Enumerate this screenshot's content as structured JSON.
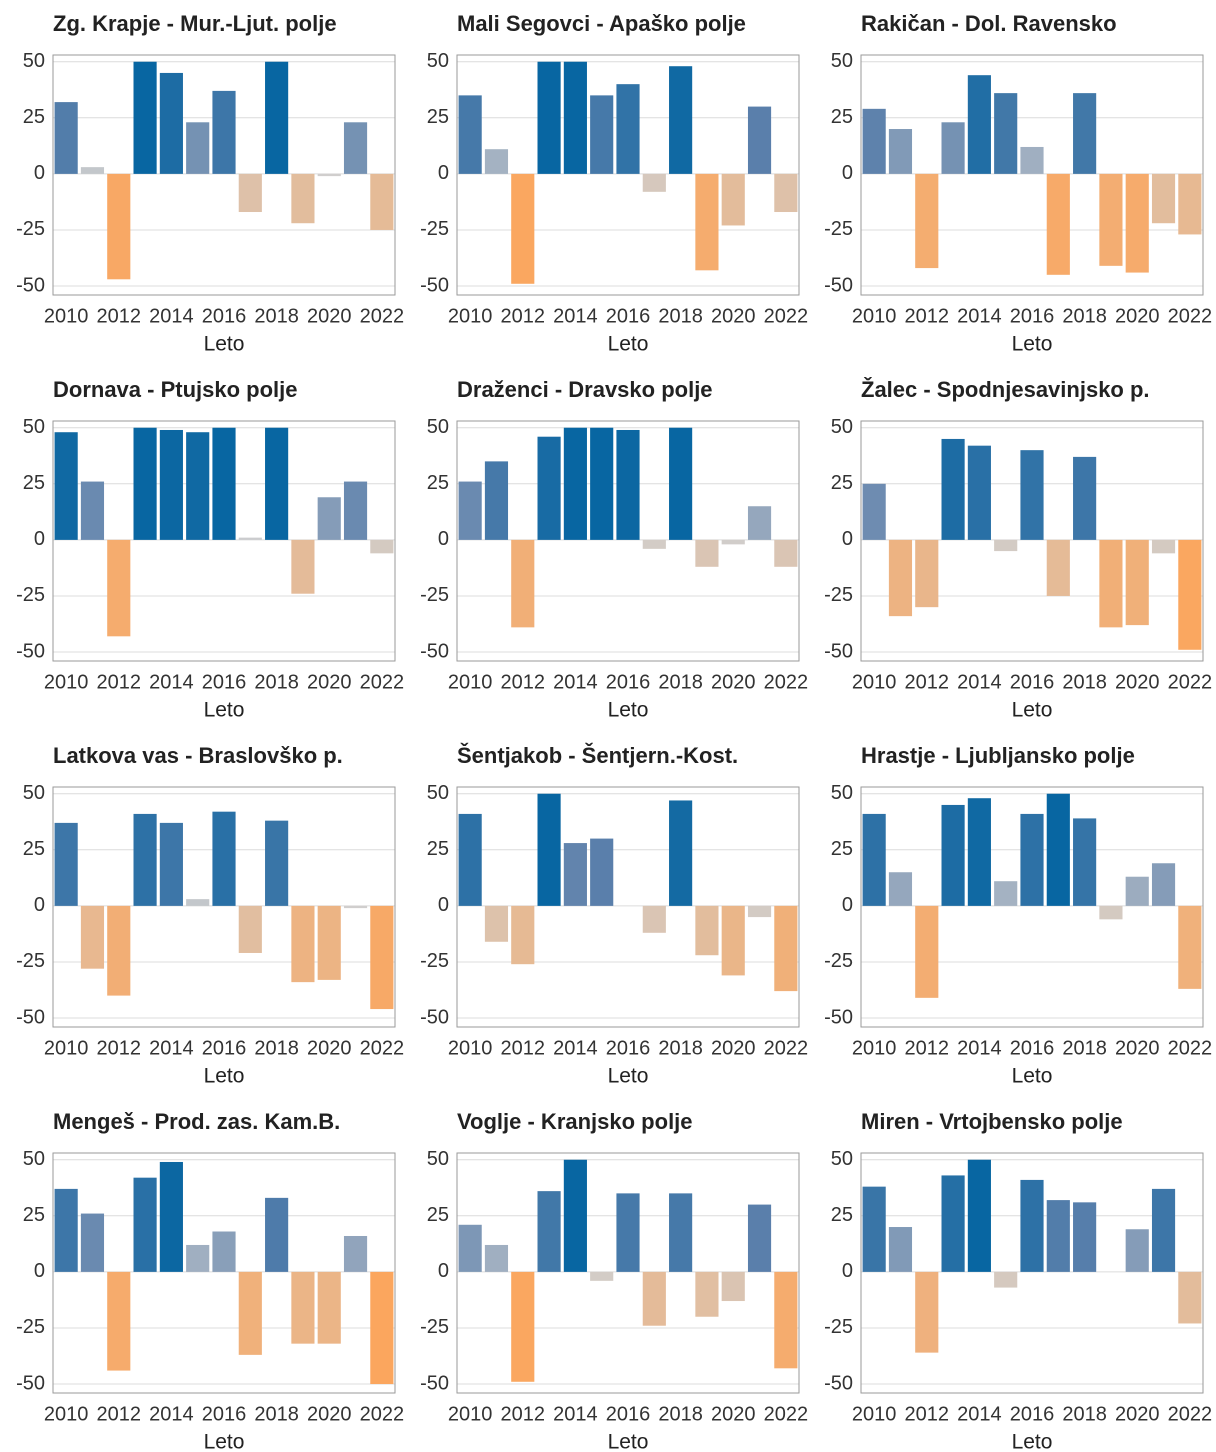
{
  "color_scale": [
    {
      "value": -50,
      "color": "#fba65e"
    },
    {
      "value": 0,
      "color": "#cfcfcf"
    },
    {
      "value": 30,
      "color": "#5a7fab"
    },
    {
      "value": 50,
      "color": "#0866a2"
    }
  ],
  "chart_data": [
    {
      "type": "bar",
      "title": "Zg. Krapje - Mur.-Ljut. polje",
      "x_label": "Leto",
      "x": [
        2010,
        2011,
        2012,
        2013,
        2014,
        2015,
        2016,
        2017,
        2018,
        2019,
        2020,
        2021,
        2022
      ],
      "values": [
        32,
        3,
        -47,
        50,
        45,
        23,
        37,
        -17,
        50,
        -22,
        -1,
        23,
        -25
      ],
      "xlim": [
        2009.5,
        2022.5
      ],
      "xticks": [
        2010,
        2012,
        2014,
        2016,
        2018,
        2020,
        2022
      ],
      "ylim": [
        -54,
        53
      ],
      "yticks": [
        -50,
        -25,
        0,
        25,
        50
      ],
      "grid": true
    },
    {
      "type": "bar",
      "title": "Mali Segovci - Apaško polje",
      "x_label": "Leto",
      "x": [
        2010,
        2011,
        2012,
        2013,
        2014,
        2015,
        2016,
        2017,
        2018,
        2019,
        2020,
        2021,
        2022
      ],
      "values": [
        35,
        11,
        -49,
        50,
        50,
        35,
        40,
        -8,
        48,
        -43,
        -23,
        30,
        -17
      ],
      "xlim": [
        2009.5,
        2022.5
      ],
      "xticks": [
        2010,
        2012,
        2014,
        2016,
        2018,
        2020,
        2022
      ],
      "ylim": [
        -54,
        53
      ],
      "yticks": [
        -50,
        -25,
        0,
        25,
        50
      ],
      "grid": true
    },
    {
      "type": "bar",
      "title": "Rakičan - Dol. Ravensko",
      "x_label": "Leto",
      "x": [
        2010,
        2011,
        2012,
        2013,
        2014,
        2015,
        2016,
        2017,
        2018,
        2019,
        2020,
        2021,
        2022
      ],
      "values": [
        29,
        20,
        -42,
        23,
        44,
        36,
        12,
        -45,
        36,
        -41,
        -44,
        -22,
        -27
      ],
      "xlim": [
        2009.5,
        2022.5
      ],
      "xticks": [
        2010,
        2012,
        2014,
        2016,
        2018,
        2020,
        2022
      ],
      "ylim": [
        -54,
        53
      ],
      "yticks": [
        -50,
        -25,
        0,
        25,
        50
      ],
      "grid": true
    },
    {
      "type": "bar",
      "title": "Dornava - Ptujsko polje",
      "x_label": "Leto",
      "x": [
        2010,
        2011,
        2012,
        2013,
        2014,
        2015,
        2016,
        2017,
        2018,
        2019,
        2020,
        2021,
        2022
      ],
      "values": [
        48,
        26,
        -43,
        50,
        49,
        48,
        50,
        1,
        50,
        -24,
        19,
        26,
        -6
      ],
      "xlim": [
        2009.5,
        2022.5
      ],
      "xticks": [
        2010,
        2012,
        2014,
        2016,
        2018,
        2020,
        2022
      ],
      "ylim": [
        -54,
        53
      ],
      "yticks": [
        -50,
        -25,
        0,
        25,
        50
      ],
      "grid": true
    },
    {
      "type": "bar",
      "title": "Draženci - Dravsko polje",
      "x_label": "Leto",
      "x": [
        2010,
        2011,
        2012,
        2013,
        2014,
        2015,
        2016,
        2017,
        2018,
        2019,
        2020,
        2021,
        2022
      ],
      "values": [
        26,
        35,
        -39,
        46,
        50,
        50,
        49,
        -4,
        50,
        -12,
        -2,
        15,
        -12
      ],
      "xlim": [
        2009.5,
        2022.5
      ],
      "xticks": [
        2010,
        2012,
        2014,
        2016,
        2018,
        2020,
        2022
      ],
      "ylim": [
        -54,
        53
      ],
      "yticks": [
        -50,
        -25,
        0,
        25,
        50
      ],
      "grid": true
    },
    {
      "type": "bar",
      "title": "Žalec - Spodnjesavinjsko p.",
      "x_label": "Leto",
      "x": [
        2010,
        2011,
        2012,
        2013,
        2014,
        2015,
        2016,
        2017,
        2018,
        2019,
        2020,
        2021,
        2022
      ],
      "values": [
        25,
        -34,
        -30,
        45,
        42,
        -5,
        40,
        -25,
        37,
        -39,
        -38,
        -6,
        -49
      ],
      "xlim": [
        2009.5,
        2022.5
      ],
      "xticks": [
        2010,
        2012,
        2014,
        2016,
        2018,
        2020,
        2022
      ],
      "ylim": [
        -54,
        53
      ],
      "yticks": [
        -50,
        -25,
        0,
        25,
        50
      ],
      "grid": true
    },
    {
      "type": "bar",
      "title": "Latkova vas - Braslovško p.",
      "x_label": "Leto",
      "x": [
        2010,
        2011,
        2012,
        2013,
        2014,
        2015,
        2016,
        2017,
        2018,
        2019,
        2020,
        2021,
        2022
      ],
      "values": [
        37,
        -28,
        -40,
        41,
        37,
        3,
        42,
        -21,
        38,
        -34,
        -33,
        -1,
        -46
      ],
      "xlim": [
        2009.5,
        2022.5
      ],
      "xticks": [
        2010,
        2012,
        2014,
        2016,
        2018,
        2020,
        2022
      ],
      "ylim": [
        -54,
        53
      ],
      "yticks": [
        -50,
        -25,
        0,
        25,
        50
      ],
      "grid": true
    },
    {
      "type": "bar",
      "title": "Šentjakob - Šentjern.-Kost.",
      "x_label": "Leto",
      "x": [
        2010,
        2011,
        2012,
        2013,
        2014,
        2015,
        2016,
        2017,
        2018,
        2019,
        2020,
        2021,
        2022
      ],
      "values": [
        41,
        -16,
        -26,
        50,
        28,
        30,
        0,
        -12,
        47,
        -22,
        -31,
        -5,
        -38
      ],
      "xlim": [
        2009.5,
        2022.5
      ],
      "xticks": [
        2010,
        2012,
        2014,
        2016,
        2018,
        2020,
        2022
      ],
      "ylim": [
        -54,
        53
      ],
      "yticks": [
        -50,
        -25,
        0,
        25,
        50
      ],
      "grid": true
    },
    {
      "type": "bar",
      "title": "Hrastje - Ljubljansko polje",
      "x_label": "Leto",
      "x": [
        2010,
        2011,
        2012,
        2013,
        2014,
        2015,
        2016,
        2017,
        2018,
        2019,
        2020,
        2021,
        2022
      ],
      "values": [
        41,
        15,
        -41,
        45,
        48,
        11,
        41,
        50,
        39,
        -6,
        13,
        19,
        -37
      ],
      "xlim": [
        2009.5,
        2022.5
      ],
      "xticks": [
        2010,
        2012,
        2014,
        2016,
        2018,
        2020,
        2022
      ],
      "ylim": [
        -54,
        53
      ],
      "yticks": [
        -50,
        -25,
        0,
        25,
        50
      ],
      "grid": true
    },
    {
      "type": "bar",
      "title": "Mengeš - Prod. zas. Kam.B.",
      "x_label": "Leto",
      "x": [
        2010,
        2011,
        2012,
        2013,
        2014,
        2015,
        2016,
        2017,
        2018,
        2019,
        2020,
        2021,
        2022
      ],
      "values": [
        37,
        26,
        -44,
        42,
        49,
        12,
        18,
        -37,
        33,
        -32,
        -32,
        16,
        -50
      ],
      "xlim": [
        2009.5,
        2022.5
      ],
      "xticks": [
        2010,
        2012,
        2014,
        2016,
        2018,
        2020,
        2022
      ],
      "ylim": [
        -54,
        53
      ],
      "yticks": [
        -50,
        -25,
        0,
        25,
        50
      ],
      "grid": true
    },
    {
      "type": "bar",
      "title": "Voglje - Kranjsko polje",
      "x_label": "Leto",
      "x": [
        2010,
        2011,
        2012,
        2013,
        2014,
        2015,
        2016,
        2017,
        2018,
        2019,
        2020,
        2021,
        2022
      ],
      "values": [
        21,
        12,
        -49,
        36,
        50,
        -4,
        35,
        -24,
        35,
        -20,
        -13,
        30,
        -43
      ],
      "xlim": [
        2009.5,
        2022.5
      ],
      "xticks": [
        2010,
        2012,
        2014,
        2016,
        2018,
        2020,
        2022
      ],
      "ylim": [
        -54,
        53
      ],
      "yticks": [
        -50,
        -25,
        0,
        25,
        50
      ],
      "grid": true
    },
    {
      "type": "bar",
      "title": "Miren - Vrtojbensko polje",
      "x_label": "Leto",
      "x": [
        2010,
        2011,
        2012,
        2013,
        2014,
        2015,
        2016,
        2017,
        2018,
        2019,
        2020,
        2021,
        2022
      ],
      "values": [
        38,
        20,
        -36,
        43,
        50,
        -7,
        41,
        32,
        31,
        0,
        19,
        37,
        -23
      ],
      "xlim": [
        2009.5,
        2022.5
      ],
      "xticks": [
        2010,
        2012,
        2014,
        2016,
        2018,
        2020,
        2022
      ],
      "ylim": [
        -54,
        53
      ],
      "yticks": [
        -50,
        -25,
        0,
        25,
        50
      ],
      "grid": true
    }
  ]
}
